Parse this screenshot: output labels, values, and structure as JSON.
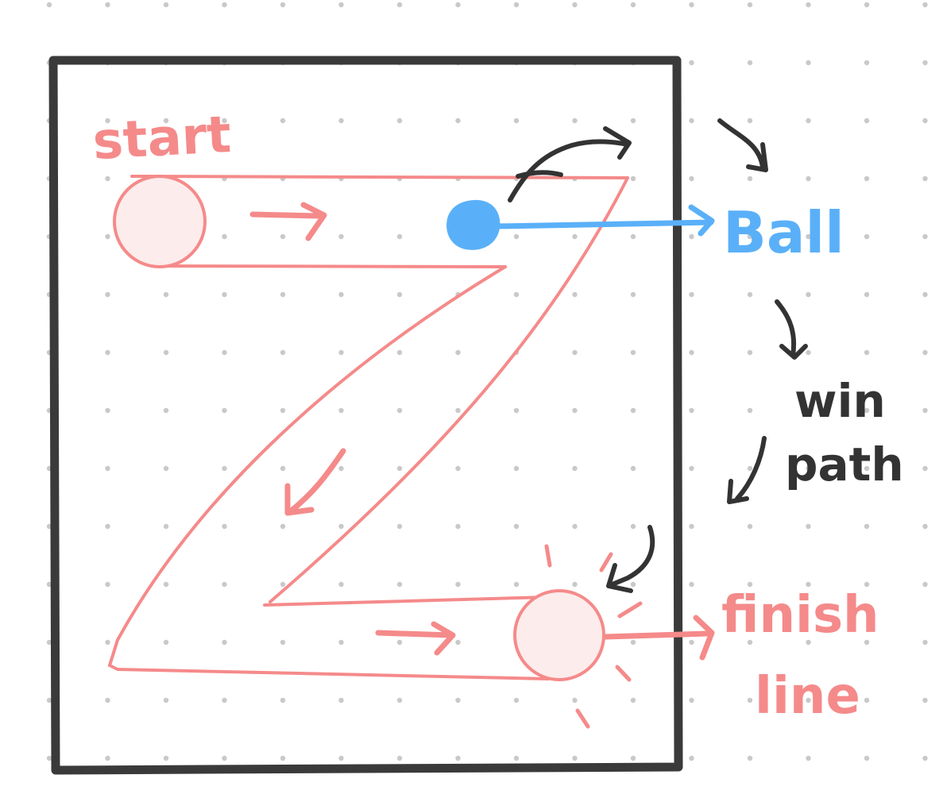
{
  "labels": {
    "start": "start",
    "ball": "Ball",
    "win_line1": "win",
    "win_line2": "path",
    "finish_line1": "finish",
    "finish_line2": "line"
  },
  "colors": {
    "background": "#ffffff",
    "grid_dot": "#c9c9c9",
    "frame": "#3a3a3a",
    "track": "#f58a8a",
    "track_fill": "#fdecec",
    "ball": "#5ab0f8",
    "annotation_dark": "#333333"
  },
  "icons": {
    "ball": "filled-circle",
    "start_marker": "hollow-circle",
    "finish_marker": "hollow-circle-with-rays"
  }
}
